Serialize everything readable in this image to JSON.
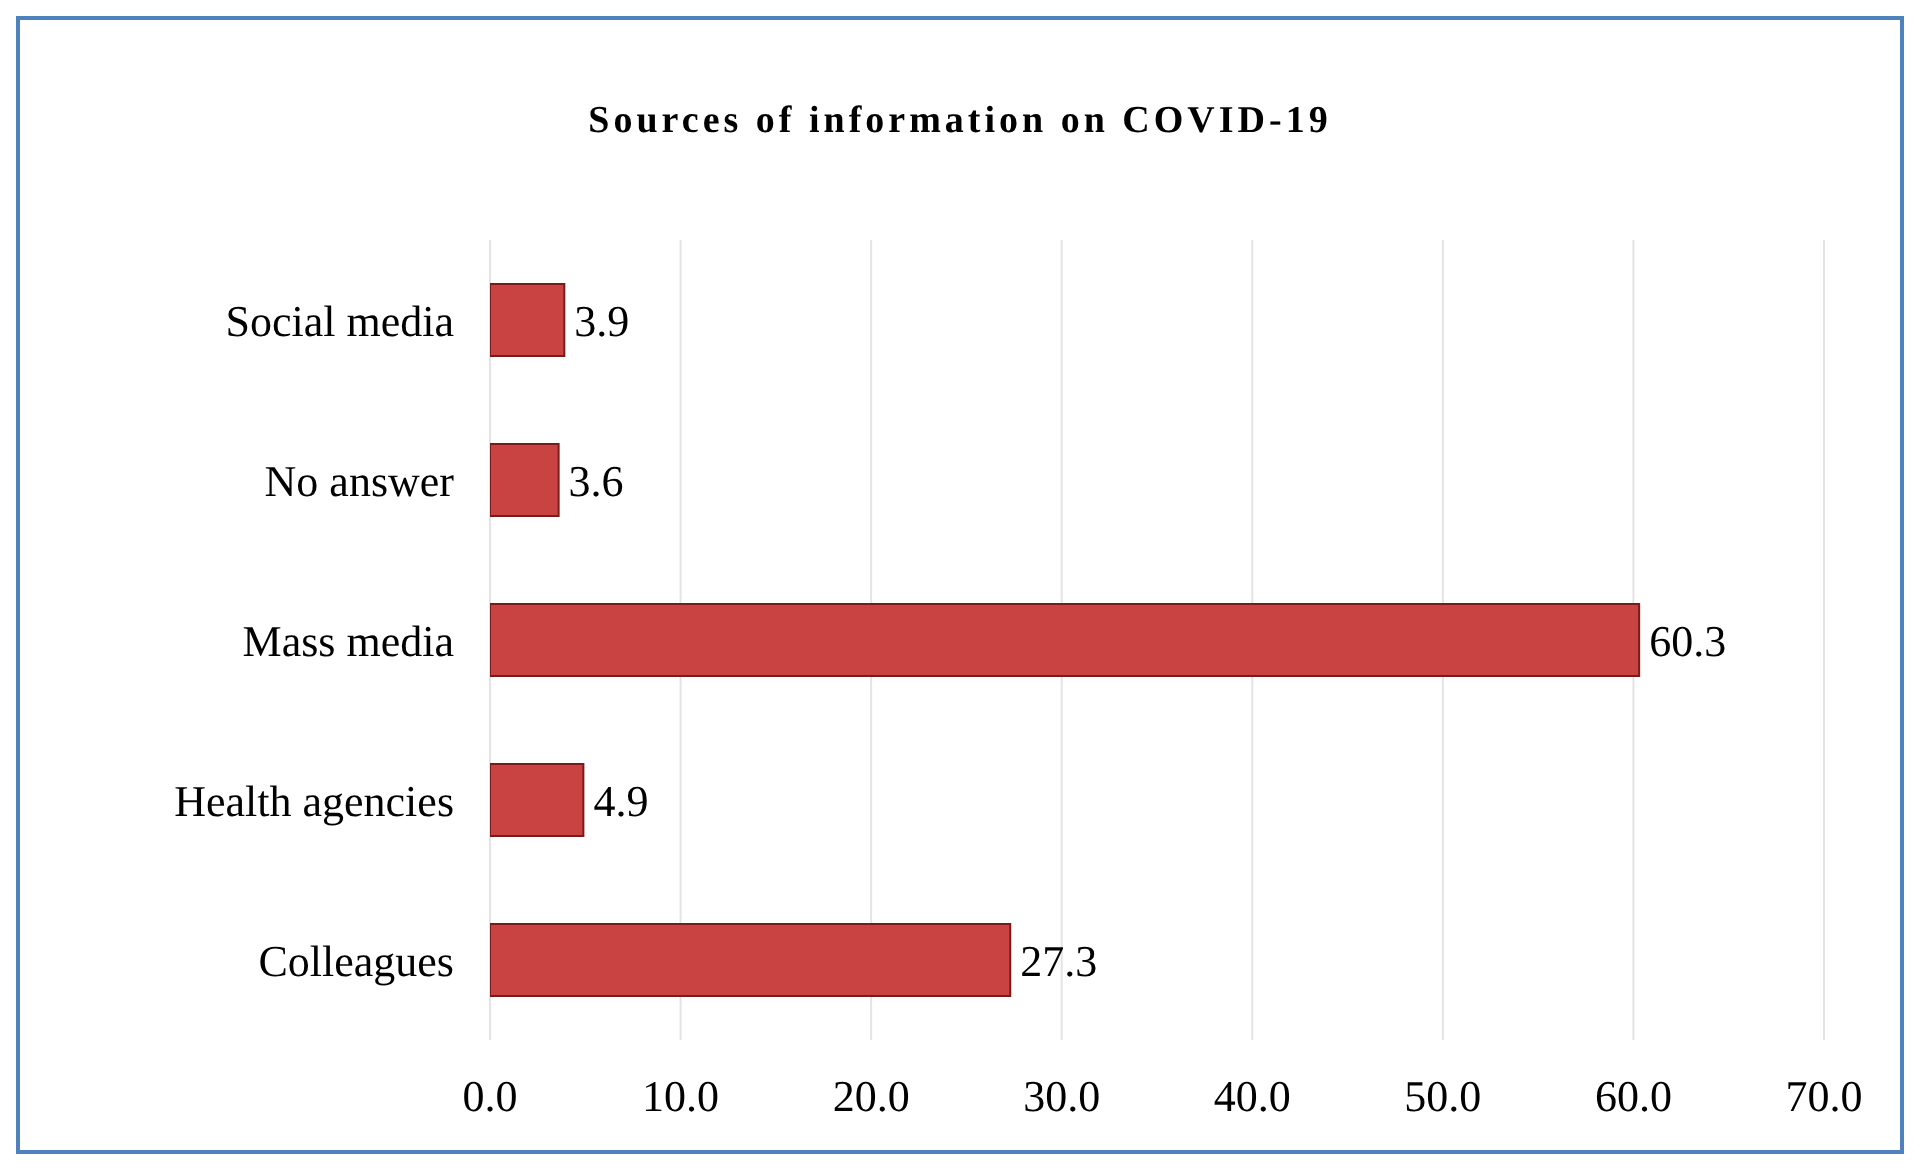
{
  "chart_data": {
    "type": "bar",
    "orientation": "horizontal",
    "title": "Sources of information on COVID-19",
    "categories": [
      "Social media",
      "No answer",
      "Mass media",
      "Health agencies",
      "Colleagues"
    ],
    "values": [
      3.9,
      3.6,
      60.3,
      4.9,
      27.3
    ],
    "color": "#c94343",
    "xlim": [
      0,
      70
    ],
    "xticks": [
      {
        "value": 0,
        "label": "0.0"
      },
      {
        "value": 10,
        "label": "10.0"
      },
      {
        "value": 20,
        "label": "20.0"
      },
      {
        "value": 30,
        "label": "30.0"
      },
      {
        "value": 40,
        "label": "40.0"
      },
      {
        "value": 50,
        "label": "50.0"
      },
      {
        "value": 60,
        "label": "60.0"
      },
      {
        "value": 70,
        "label": "70.0"
      }
    ],
    "grid": "x",
    "data_labels": true,
    "legend": false
  }
}
